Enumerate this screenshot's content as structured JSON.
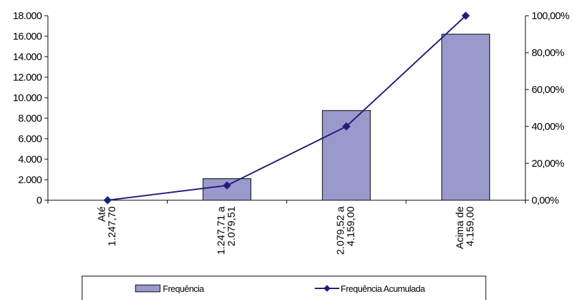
{
  "chart_data": {
    "type": "bar",
    "categories": [
      [
        "Até",
        "1.247,70"
      ],
      [
        "1.247,71 a",
        "2.079,51"
      ],
      [
        "2.079,52 a",
        "4.159,00"
      ],
      [
        "Acima de",
        "4.159,00"
      ]
    ],
    "series": [
      {
        "name": "Frequência",
        "type": "bar",
        "axis": "left",
        "values": [
          0,
          2100,
          8750,
          16200
        ],
        "color": "#9999cc"
      },
      {
        "name": "Frequência Acumulada",
        "type": "line",
        "axis": "right",
        "values": [
          0.0,
          8.0,
          40.0,
          100.0
        ],
        "color": "#1f1f7a"
      }
    ],
    "y_left": {
      "min": 0,
      "max": 18000,
      "step": 2000,
      "tick_labels": [
        "0",
        "2.000",
        "4.000",
        "6.000",
        "8.000",
        "10.000",
        "12.000",
        "14.000",
        "16.000",
        "18.000"
      ]
    },
    "y_right": {
      "min": 0,
      "max": 100,
      "step": 20,
      "tick_labels": [
        "0,00%",
        "20,00%",
        "40,00%",
        "60,00%",
        "80,00%",
        "100,00%"
      ]
    },
    "grid": false,
    "legend": {
      "position": "bottom",
      "items": [
        "Frequência",
        "Frequência Acumulada"
      ]
    }
  }
}
